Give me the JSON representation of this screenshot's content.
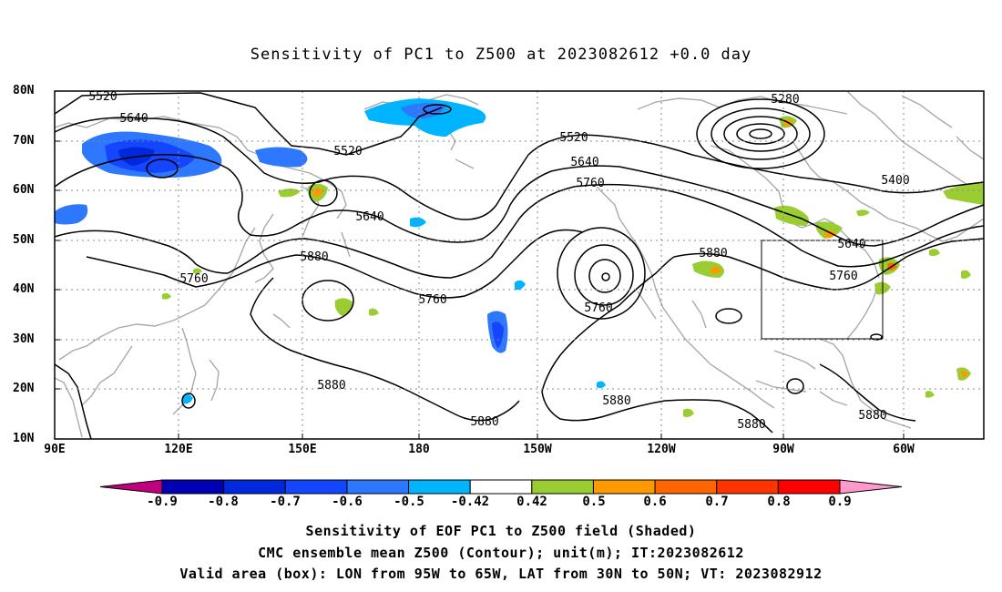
{
  "title": "Sensitivity of PC1 to Z500 at 2023082612 +0.0 day",
  "lat_labels": [
    "80N",
    "70N",
    "60N",
    "50N",
    "40N",
    "30N",
    "20N",
    "10N"
  ],
  "lon_labels": [
    "90E",
    "120E",
    "150E",
    "180",
    "150W",
    "120W",
    "90W",
    "60W"
  ],
  "contour_labels": [
    "5520",
    "5640",
    "5520",
    "5640",
    "5760",
    "5880",
    "5760",
    "5280",
    "5520",
    "5640",
    "5760",
    "5400",
    "5640",
    "5760",
    "5760",
    "5880",
    "5880",
    "5880",
    "5880",
    "5880"
  ],
  "colorbar": {
    "labels": [
      "-0.9",
      "-0.8",
      "-0.7",
      "-0.6",
      "-0.5",
      "-0.42",
      "0.42",
      "0.5",
      "0.6",
      "0.7",
      "0.8",
      "0.9"
    ],
    "colors": [
      "#c0007f",
      "#0000b4",
      "#0028dc",
      "#1446ff",
      "#2d78ff",
      "#00b4ff",
      "#ffffff",
      "#9acd32",
      "#ff9900",
      "#ff6600",
      "#ff3300",
      "#ff0000",
      "#ff99cc"
    ]
  },
  "captions": [
    "Sensitivity of EOF PC1 to Z500 field (Shaded)",
    "CMC ensemble mean Z500 (Contour); unit(m); IT:2023082612",
    "Valid area (box): LON from 95W to 65W, LAT from 30N to 50N; VT: 2023082912"
  ],
  "valid_area": {
    "lon_min": "95W",
    "lon_max": "65W",
    "lat_min": "30N",
    "lat_max": "50N"
  }
}
